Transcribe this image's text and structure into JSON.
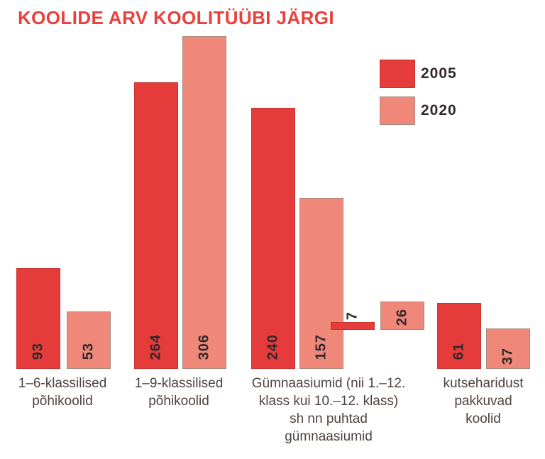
{
  "title": "KOOLIDE ARV KOOLITÜÜBI JÄRGI",
  "colors": {
    "title": "#e9403c",
    "bar_2005": "#e53b3b",
    "bar_2005_border": "#c9342f",
    "bar_2020": "#f0887a",
    "bar_2020_border": "#a8887c",
    "value_text": "#33282a",
    "category_text": "#4e4340"
  },
  "legend": {
    "items": [
      {
        "label": "2005",
        "color": "#e53b3b"
      },
      {
        "label": "2020",
        "color": "#f0887a"
      }
    ]
  },
  "chart_data": {
    "type": "bar",
    "title": "KOOLIDE ARV KOOLITÜÜBI JÄRGI",
    "series": [
      "2005",
      "2020"
    ],
    "legend_position": "top-right",
    "value_axis_hidden": true,
    "grid": false,
    "groups": [
      {
        "id": "pohikoolid-1-6",
        "label": "1–6-klassilised põhikoolid",
        "label_lines": [
          "1–6-klassilised",
          "põhikoolid"
        ],
        "values": [
          93,
          53
        ]
      },
      {
        "id": "pohikoolid-1-9",
        "label": "1–9-klassilised põhikoolid",
        "label_lines": [
          "1–9-klassilised",
          "põhikoolid"
        ],
        "values": [
          264,
          306
        ]
      },
      {
        "id": "gumnaasiumid",
        "label": "Gümnaasiumid (nii 1.–12. klass kui 10.–12. klass) sh nn puhtad gümnaasiumid",
        "label_lines": [
          "Gümnaasiumid (nii 1.–12.",
          "klass kui 10.–12. klass)",
          "sh nn puhtad",
          "gümnaasiumid"
        ],
        "values": [
          240,
          157
        ],
        "sub_values": [
          7,
          26
        ],
        "sub_label": "sh nn puhtad gümnaasiumid"
      },
      {
        "id": "kutsekoolid",
        "label": "kutseharidust pakkuvad koolid",
        "label_lines": [
          "kutseharidust",
          "pakkuvad",
          "koolid"
        ],
        "values": [
          61,
          37
        ]
      }
    ]
  }
}
